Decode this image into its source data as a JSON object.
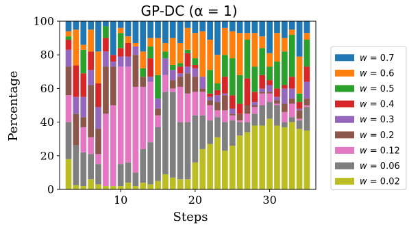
{
  "chart_data": {
    "type": "bar",
    "stacked": true,
    "title": "GP-DC (α = 1)",
    "xlabel": "Steps",
    "ylabel": "Percentage",
    "xlim": [
      1.8,
      36.2
    ],
    "ylim": [
      0,
      100
    ],
    "xticks": [
      10,
      20,
      30
    ],
    "yticks": [
      0,
      20,
      40,
      60,
      80,
      100
    ],
    "legend_position": "right",
    "x": [
      3,
      4,
      5,
      6,
      7,
      8,
      9,
      10,
      11,
      12,
      13,
      14,
      15,
      16,
      17,
      18,
      19,
      20,
      21,
      22,
      23,
      24,
      25,
      26,
      27,
      28,
      29,
      30,
      31,
      32,
      33,
      34,
      35
    ],
    "series": [
      {
        "name": "w = 0.02",
        "color": "#bcbd22",
        "values": [
          18,
          2,
          2,
          6,
          3,
          2,
          2,
          2,
          4,
          2,
          4,
          3,
          5,
          9,
          7,
          6,
          6,
          16,
          24,
          27,
          31,
          23,
          26,
          32,
          34,
          38,
          38,
          42,
          38,
          37,
          40,
          36,
          35
        ]
      },
      {
        "name": "w = 0.06",
        "color": "#7f7f7f",
        "values": [
          22,
          19,
          20,
          15,
          12,
          0,
          0,
          13,
          12,
          8,
          20,
          25,
          32,
          49,
          51,
          34,
          34,
          28,
          20,
          14,
          12,
          17,
          15,
          8,
          6,
          7,
          12,
          10,
          12,
          3,
          3,
          5,
          14
        ]
      },
      {
        "name": "w = 0.12",
        "color": "#e377c2",
        "values": [
          16,
          0,
          15,
          10,
          6,
          43,
          48,
          58,
          57,
          51,
          37,
          36,
          7,
          10,
          2,
          21,
          17,
          14,
          14,
          9,
          4,
          7,
          3,
          1,
          5,
          4,
          7,
          5,
          1,
          6,
          8,
          1,
          1
        ]
      },
      {
        "name": "w = 0.2",
        "color": "#8c564b",
        "values": [
          17,
          15,
          6,
          31,
          15,
          28,
          23,
          0,
          0,
          19,
          6,
          0,
          4,
          0,
          5,
          6,
          12,
          9,
          2,
          3,
          5,
          9,
          1,
          4,
          5,
          1,
          1,
          1,
          2,
          5,
          3,
          5,
          4
        ]
      },
      {
        "name": "w = 0.3",
        "color": "#9467bd",
        "values": [
          10,
          8,
          12,
          9,
          13,
          9,
          3,
          6,
          6,
          5,
          0,
          3,
          6,
          10,
          6,
          2,
          4,
          5,
          7,
          2,
          4,
          1,
          3,
          0,
          0,
          2,
          2,
          4,
          2,
          9,
          6,
          1,
          10
        ]
      },
      {
        "name": "w = 0.4",
        "color": "#d62728",
        "values": [
          6,
          15,
          14,
          11,
          14,
          8,
          4,
          5,
          8,
          0,
          0,
          11,
          0,
          0,
          0,
          4,
          8,
          2,
          0,
          2,
          3,
          10,
          8,
          6,
          16,
          6,
          8,
          3,
          5,
          2,
          7,
          4,
          9
        ]
      },
      {
        "name": "w = 0.5",
        "color": "#2ca02c",
        "values": [
          2,
          0,
          14,
          0,
          0,
          7,
          0,
          9,
          0,
          0,
          5,
          7,
          14,
          4,
          3,
          2,
          2,
          4,
          0,
          14,
          4,
          13,
          22,
          17,
          23,
          15,
          16,
          8,
          16,
          20,
          25,
          5,
          16
        ]
      },
      {
        "name": "w = 0.6",
        "color": "#ff7f0e",
        "values": [
          3,
          17,
          3,
          13,
          19,
          0,
          0,
          3,
          4,
          2,
          10,
          5,
          22,
          5,
          16,
          12,
          13,
          15,
          27,
          18,
          17,
          16,
          16,
          25,
          4,
          20,
          7,
          8,
          17,
          8,
          3,
          22,
          4
        ]
      },
      {
        "name": "w = 0.7",
        "color": "#1f77b4",
        "values": [
          6,
          4,
          14,
          5,
          18,
          3,
          20,
          4,
          9,
          13,
          18,
          10,
          10,
          13,
          10,
          13,
          4,
          7,
          6,
          11,
          20,
          4,
          6,
          7,
          7,
          7,
          9,
          19,
          7,
          10,
          5,
          21,
          7
        ]
      }
    ]
  }
}
